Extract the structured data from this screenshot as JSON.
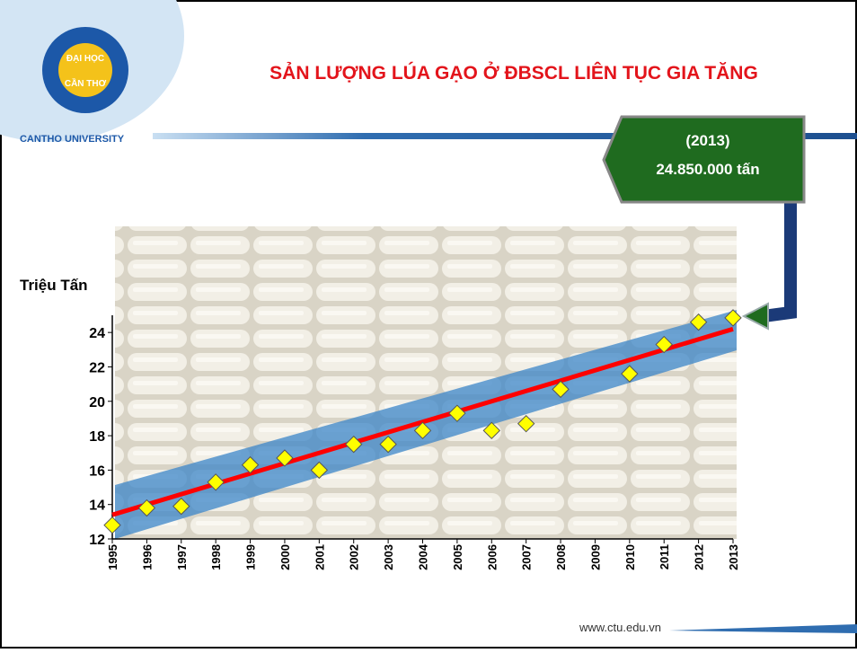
{
  "slide": {
    "title": "SẢN LƯỢNG LÚA GẠO Ở ĐBSCL LIÊN TỤC GIA TĂNG",
    "logo_top": "ĐẠI HỌC",
    "logo_bottom": "CẦN THƠ",
    "university": "CANTHO UNIVERSITY",
    "callout_year": "(2013)",
    "callout_value": "24.850.000 tấn",
    "url": "www.ctu.edu.vn"
  },
  "chart_data": {
    "type": "scatter",
    "y_label": "Triệu Tấn",
    "x": [
      1995,
      1996,
      1997,
      1998,
      1999,
      2000,
      2001,
      2002,
      2003,
      2004,
      2005,
      2006,
      2007,
      2008,
      2009,
      2010,
      2011,
      2012,
      2013
    ],
    "values": [
      12.8,
      13.8,
      13.9,
      15.3,
      16.3,
      16.7,
      16.0,
      17.5,
      17.5,
      18.3,
      19.3,
      18.3,
      18.7,
      20.7,
      null,
      21.6,
      23.3,
      24.6,
      24.85
    ],
    "color": "#ffff00",
    "trend": {
      "x": [
        1995,
        2013
      ],
      "values": [
        13.4,
        24.2
      ],
      "color": "#ff0000"
    },
    "xlim": [
      1995,
      2013
    ],
    "xticks": [
      1995,
      1996,
      1997,
      1998,
      1999,
      2000,
      2001,
      2002,
      2003,
      2004,
      2005,
      2006,
      2007,
      2008,
      2009,
      2010,
      2011,
      2012,
      2013
    ],
    "ylim": [
      12,
      25
    ],
    "yticks": [
      12,
      14,
      16,
      18,
      20,
      22,
      24
    ]
  }
}
